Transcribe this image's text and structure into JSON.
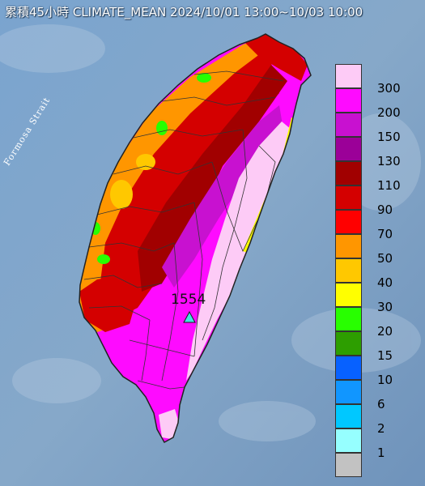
{
  "title": "累積45小時 CLIMATE_MEAN 2024/10/01 13:00~10/03 10:00",
  "strait_label": "Formosa Strait",
  "max_station": {
    "value": "1554",
    "marker_color": "#41e6e0"
  },
  "colors": {
    "sea": "#7fa2c9",
    "island_outline": "#222222",
    "boundary": "#333333"
  },
  "legend": {
    "labels": [
      "300",
      "200",
      "150",
      "130",
      "110",
      "90",
      "70",
      "50",
      "40",
      "30",
      "20",
      "15",
      "10",
      "6",
      "2",
      "1"
    ],
    "colors": [
      "#fdcbf6",
      "#fe0bff",
      "#c811d0",
      "#9b0098",
      "#a10000",
      "#d40000",
      "#ff0000",
      "#ff9600",
      "#ffc800",
      "#ffff00",
      "#28ff00",
      "#2d9e00",
      "#0761ff",
      "#1196ff",
      "#00c8ff",
      "#96ffff",
      "#c2c2c2"
    ]
  }
}
